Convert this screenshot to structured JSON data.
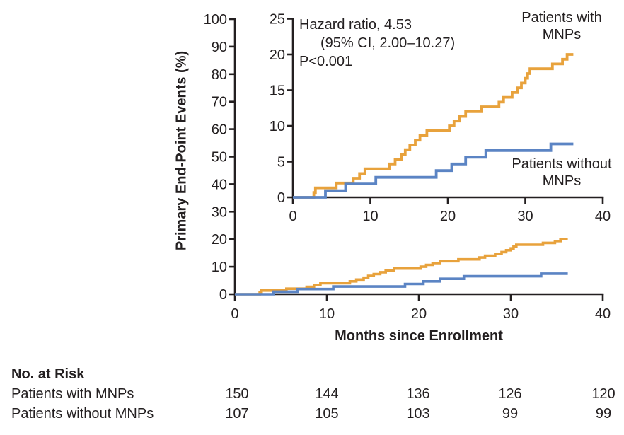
{
  "figure": {
    "y_axis_title": "Primary End-Point Events (%)",
    "x_axis_title": "Months since Enrollment"
  },
  "annotation": {
    "lines": [
      "Hazard ratio, 4.53",
      "(95% CI, 2.00–10.27)",
      "P<0.001"
    ]
  },
  "legend": {
    "with_mnps": {
      "lines": [
        "Patients with",
        "MNPs"
      ]
    },
    "without_mnps": {
      "lines": [
        "Patients without",
        "MNPs"
      ]
    }
  },
  "colors": {
    "with_mnps": "#E8A23C",
    "without_mnps": "#5B84C4",
    "axis": "#231F20",
    "text": "#231F20"
  },
  "chart_data": [
    {
      "id": "main",
      "type": "step-line",
      "title": "",
      "xlabel": "Months since Enrollment",
      "ylabel": "Primary End-Point Events (%)",
      "xlim": [
        0,
        40
      ],
      "ylim": [
        0,
        100
      ],
      "x_ticks": [
        0,
        10,
        20,
        30,
        40
      ],
      "y_ticks": [
        0,
        10,
        20,
        30,
        40,
        50,
        60,
        70,
        80,
        90,
        100
      ],
      "grid": false,
      "legend_position": "labels-on-curves",
      "series": [
        {
          "name": "Patients with MNPs",
          "color_key": "with_mnps",
          "end_month": 36.2,
          "events": [
            [
              2.7,
              0.67
            ],
            [
              2.9,
              1.33
            ],
            [
              5.6,
              2.0
            ],
            [
              7.8,
              2.67
            ],
            [
              8.6,
              3.33
            ],
            [
              9.3,
              4.0
            ],
            [
              12.5,
              4.67
            ],
            [
              13.2,
              5.33
            ],
            [
              14.0,
              6.0
            ],
            [
              14.5,
              6.67
            ],
            [
              15.1,
              7.33
            ],
            [
              15.8,
              8.0
            ],
            [
              16.4,
              8.67
            ],
            [
              17.3,
              9.33
            ],
            [
              20.2,
              10.0
            ],
            [
              20.8,
              10.67
            ],
            [
              21.5,
              11.33
            ],
            [
              22.3,
              12.0
            ],
            [
              24.3,
              12.67
            ],
            [
              26.6,
              13.33
            ],
            [
              27.2,
              14.0
            ],
            [
              28.3,
              14.67
            ],
            [
              29.0,
              15.33
            ],
            [
              29.5,
              16.0
            ],
            [
              30.0,
              16.67
            ],
            [
              30.3,
              17.33
            ],
            [
              30.6,
              18.0
            ],
            [
              33.5,
              18.67
            ],
            [
              34.8,
              19.33
            ],
            [
              35.4,
              20.0
            ]
          ]
        },
        {
          "name": "Patients without MNPs",
          "color_key": "without_mnps",
          "end_month": 36.2,
          "events": [
            [
              4.2,
              0.93
            ],
            [
              6.8,
              1.87
            ],
            [
              10.7,
              2.8
            ],
            [
              18.5,
              3.74
            ],
            [
              20.5,
              4.67
            ],
            [
              22.3,
              5.61
            ],
            [
              24.9,
              6.54
            ],
            [
              33.3,
              7.48
            ]
          ]
        }
      ]
    },
    {
      "id": "inset",
      "type": "step-line",
      "title": "",
      "xlabel": "",
      "ylabel": "",
      "xlim": [
        0,
        40
      ],
      "ylim": [
        0,
        25
      ],
      "x_ticks": [
        0,
        10,
        20,
        30,
        40
      ],
      "y_ticks": [
        0,
        5,
        10,
        15,
        20,
        25
      ],
      "grid": false,
      "legend_position": "labels-on-curves",
      "series": [
        {
          "name": "Patients with MNPs",
          "color_key": "with_mnps",
          "end_month": 36.2,
          "events": [
            [
              2.7,
              0.67
            ],
            [
              2.9,
              1.33
            ],
            [
              5.6,
              2.0
            ],
            [
              7.8,
              2.67
            ],
            [
              8.6,
              3.33
            ],
            [
              9.3,
              4.0
            ],
            [
              12.5,
              4.67
            ],
            [
              13.2,
              5.33
            ],
            [
              14.0,
              6.0
            ],
            [
              14.5,
              6.67
            ],
            [
              15.1,
              7.33
            ],
            [
              15.8,
              8.0
            ],
            [
              16.4,
              8.67
            ],
            [
              17.3,
              9.33
            ],
            [
              20.2,
              10.0
            ],
            [
              20.8,
              10.67
            ],
            [
              21.5,
              11.33
            ],
            [
              22.3,
              12.0
            ],
            [
              24.3,
              12.67
            ],
            [
              26.6,
              13.33
            ],
            [
              27.2,
              14.0
            ],
            [
              28.3,
              14.67
            ],
            [
              29.0,
              15.33
            ],
            [
              29.5,
              16.0
            ],
            [
              30.0,
              16.67
            ],
            [
              30.3,
              17.33
            ],
            [
              30.6,
              18.0
            ],
            [
              33.5,
              18.67
            ],
            [
              34.8,
              19.33
            ],
            [
              35.4,
              20.0
            ]
          ]
        },
        {
          "name": "Patients without MNPs",
          "color_key": "without_mnps",
          "end_month": 36.2,
          "events": [
            [
              4.2,
              0.93
            ],
            [
              6.8,
              1.87
            ],
            [
              10.7,
              2.8
            ],
            [
              18.5,
              3.74
            ],
            [
              20.5,
              4.67
            ],
            [
              22.3,
              5.61
            ],
            [
              24.9,
              6.54
            ],
            [
              33.3,
              7.48
            ]
          ]
        }
      ]
    }
  ],
  "risk_table": {
    "title": "No. at Risk",
    "columns_months": [
      0,
      10,
      20,
      30,
      40
    ],
    "rows": [
      {
        "label": "Patients with MNPs",
        "values": [
          "150",
          "144",
          "136",
          "126",
          "120"
        ]
      },
      {
        "label": "Patients without MNPs",
        "values": [
          "107",
          "105",
          "103",
          "99",
          "99"
        ]
      }
    ]
  }
}
